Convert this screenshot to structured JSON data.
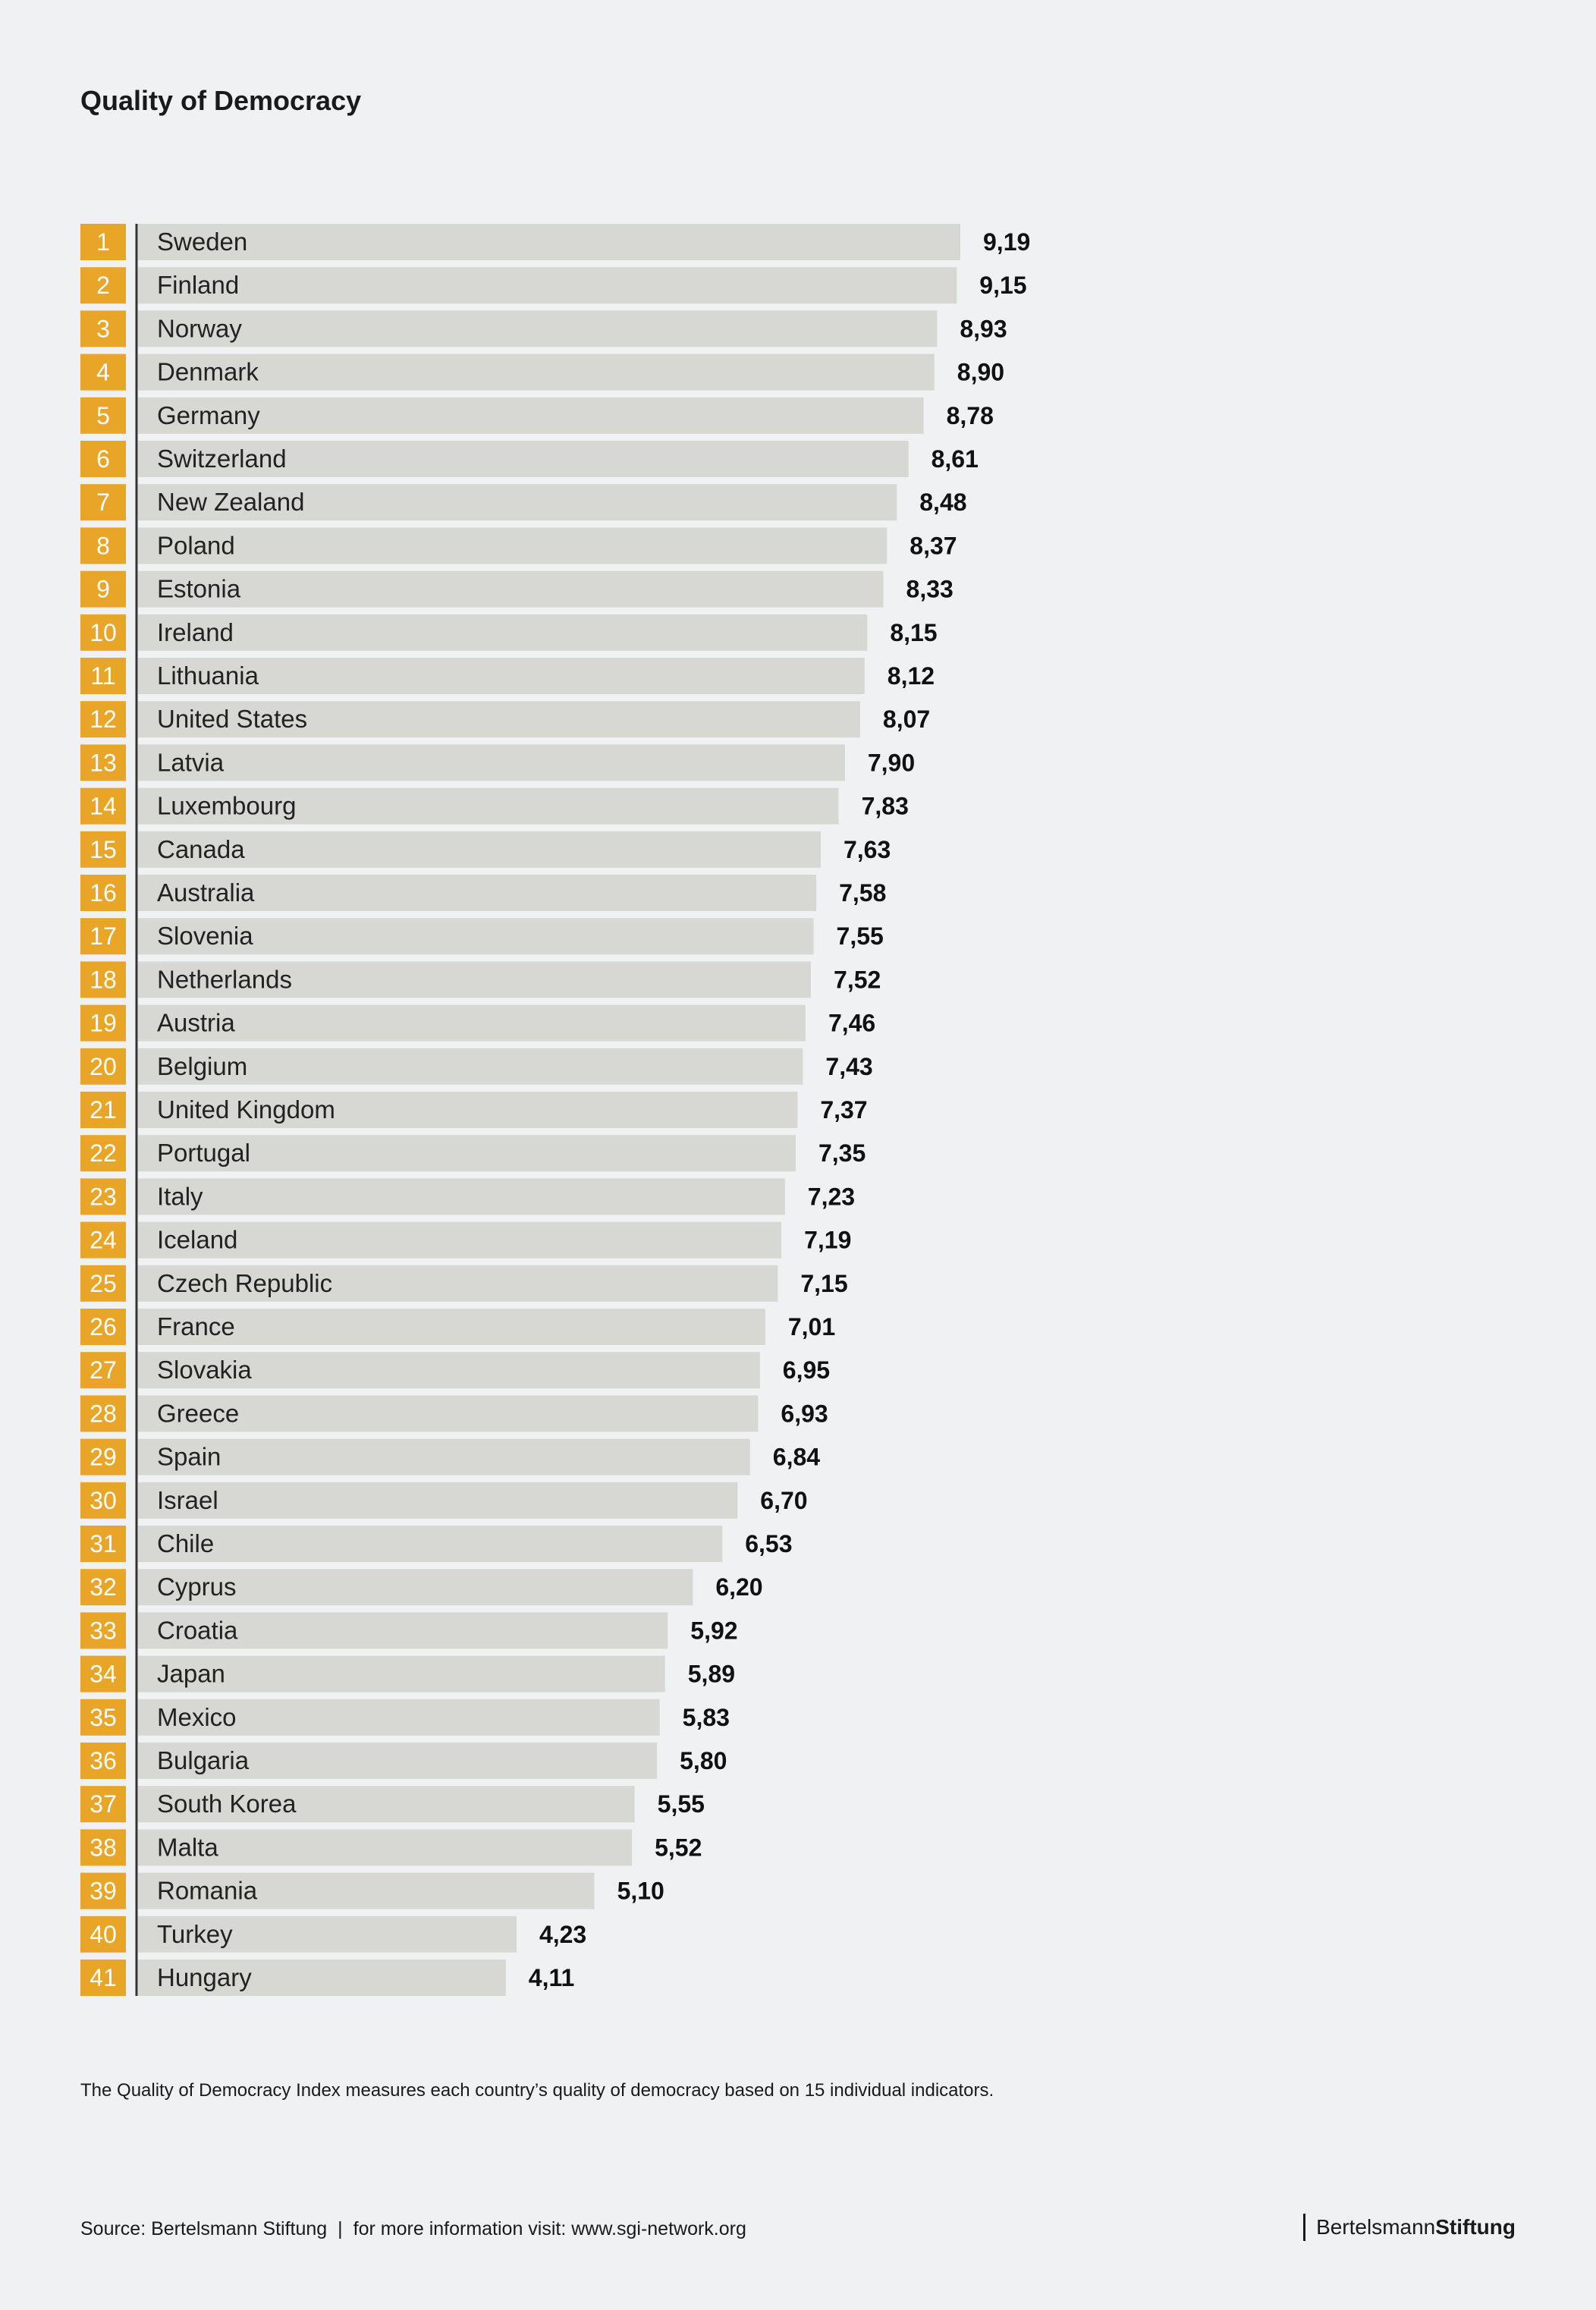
{
  "header": {
    "title": "Quality of Democracy"
  },
  "colors": {
    "rank_badge": "#e9a527",
    "bar": "#d7d7d3",
    "axis_line": "#333333",
    "background": "#f0f1f3"
  },
  "chart_data": {
    "type": "bar",
    "orientation": "horizontal",
    "title": "Quality of Democracy",
    "ranks": [
      1,
      2,
      3,
      4,
      5,
      6,
      7,
      8,
      9,
      10,
      11,
      12,
      13,
      14,
      15,
      16,
      17,
      18,
      19,
      20,
      21,
      22,
      23,
      24,
      25,
      26,
      27,
      28,
      29,
      30,
      31,
      32,
      33,
      34,
      35,
      36,
      37,
      38,
      39,
      40,
      41
    ],
    "categories": [
      "Sweden",
      "Finland",
      "Norway",
      "Denmark",
      "Germany",
      "Switzerland",
      "New Zealand",
      "Poland",
      "Estonia",
      "Ireland",
      "Lithuania",
      "United States",
      "Latvia",
      "Luxembourg",
      "Canada",
      "Australia",
      "Slovenia",
      "Netherlands",
      "Austria",
      "Belgium",
      "United Kingdom",
      "Portugal",
      "Italy",
      "Iceland",
      "Czech Republic",
      "France",
      "Slovakia",
      "Greece",
      "Spain",
      "Israel",
      "Chile",
      "Cyprus",
      "Croatia",
      "Japan",
      "Mexico",
      "Bulgaria",
      "South Korea",
      "Malta",
      "Romania",
      "Turkey",
      "Hungary"
    ],
    "values": [
      9.19,
      9.15,
      8.93,
      8.9,
      8.78,
      8.61,
      8.48,
      8.37,
      8.33,
      8.15,
      8.12,
      8.07,
      7.9,
      7.83,
      7.63,
      7.58,
      7.55,
      7.52,
      7.46,
      7.43,
      7.37,
      7.35,
      7.23,
      7.19,
      7.15,
      7.01,
      6.95,
      6.93,
      6.84,
      6.7,
      6.53,
      6.2,
      5.92,
      5.89,
      5.83,
      5.8,
      5.55,
      5.52,
      5.1,
      4.23,
      4.11
    ],
    "value_labels": [
      "9,19",
      "9,15",
      "8,93",
      "8,90",
      "8,78",
      "8,61",
      "8,48",
      "8,37",
      "8,33",
      "8,15",
      "8,12",
      "8,07",
      "7,90",
      "7,83",
      "7,63",
      "7,58",
      "7,55",
      "7,52",
      "7,46",
      "7,43",
      "7,37",
      "7,35",
      "7,23",
      "7,19",
      "7,15",
      "7,01",
      "6,95",
      "6,93",
      "6,84",
      "6,70",
      "6,53",
      "6,20",
      "5,92",
      "5,89",
      "5,83",
      "5,80",
      "5,55",
      "5,52",
      "5,10",
      "4,23",
      "4,11"
    ],
    "grid": false,
    "legend": "none"
  },
  "note": "The Quality of Democracy Index measures each country’s quality of democracy based on 15 individual indicators.",
  "footer": {
    "source": "Source: Bertelsmann Stiftung",
    "separator": "|",
    "more_info": "for more information visit: www.sgi-network.org"
  },
  "brand": {
    "part1": "Bertelsmann",
    "part2": "Stiftung"
  }
}
